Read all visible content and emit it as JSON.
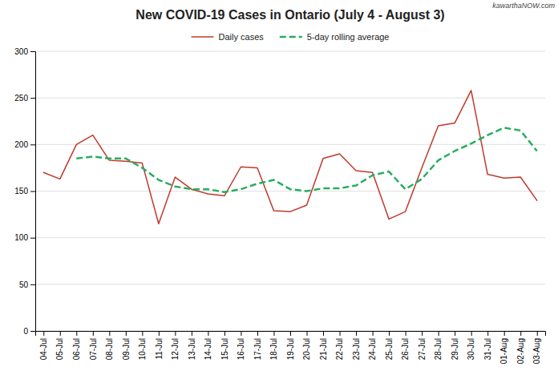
{
  "chart_data": {
    "type": "line",
    "title": "New COVID-19 Cases in Ontario (July 4 - August 3)",
    "annotations": [
      "kawarthaNOW.com"
    ],
    "categories": [
      "04-Jul",
      "05-Jul",
      "06-Jul",
      "07-Jul",
      "08-Jul",
      "09-Jul",
      "10-Jul",
      "11-Jul",
      "12-Jul",
      "13-Jul",
      "14-Jul",
      "15-Jul",
      "16-Jul",
      "17-Jul",
      "18-Jul",
      "19-Jul",
      "20-Jul",
      "21-Jul",
      "22-Jul",
      "23-Jul",
      "24-Jul",
      "25-Jul",
      "26-Jul",
      "27-Jul",
      "28-Jul",
      "29-Jul",
      "30-Jul",
      "31-Jul",
      "01-Aug",
      "02-Aug",
      "03-Aug"
    ],
    "series": [
      {
        "name": "Daily cases",
        "color": "#c0392b",
        "line_style": "solid",
        "values": [
          170,
          163,
          200,
          210,
          183,
          182,
          180,
          115,
          165,
          152,
          147,
          145,
          176,
          175,
          129,
          128,
          135,
          185,
          190,
          172,
          170,
          120,
          128,
          175,
          220,
          223,
          258,
          168,
          164,
          165,
          140
        ]
      },
      {
        "name": "5-day rolling average",
        "color": "#27ae60",
        "line_style": "dashed",
        "values": [
          null,
          null,
          185,
          187,
          185,
          185,
          175,
          162,
          155,
          152,
          152,
          149,
          152,
          158,
          162,
          152,
          150,
          153,
          153,
          156,
          167,
          171,
          152,
          163,
          183,
          193,
          201,
          210,
          218,
          215,
          193
        ]
      }
    ],
    "ylim": [
      0,
      300
    ],
    "yticks": [
      0,
      50,
      100,
      150,
      200,
      250,
      300
    ],
    "grid": true,
    "legend": "top"
  }
}
